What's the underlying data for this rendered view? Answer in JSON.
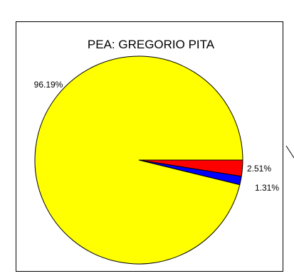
{
  "chart_data": {
    "type": "pie",
    "title": "PEA: GREGORIO PITA",
    "slices": [
      {
        "label": "96.19%",
        "value": 96.19,
        "color": "#ffff00"
      },
      {
        "label": "1.31%",
        "value": 1.31,
        "color": "#0000ff"
      },
      {
        "label": "2.51%",
        "value": 2.51,
        "color": "#ff0000"
      }
    ],
    "start_angle_deg": 0,
    "direction": "counterclockwise",
    "legend": "none"
  }
}
